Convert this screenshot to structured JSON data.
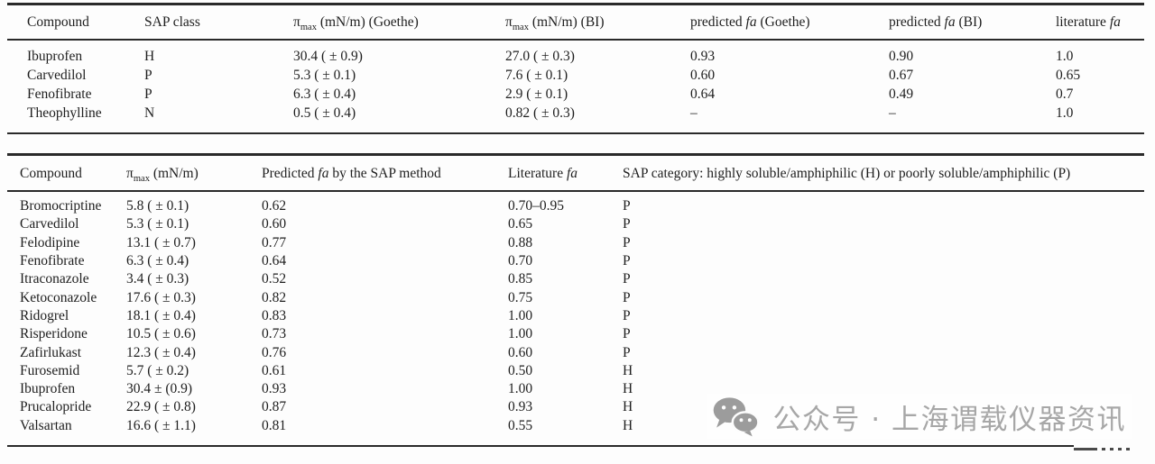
{
  "colors": {
    "text": "#1e1e1e",
    "rule": "#2a2a2a",
    "watermark": "#a7a7a7"
  },
  "table1": {
    "columns": [
      [
        {
          "t": "Compound"
        }
      ],
      [
        {
          "t": "SAP class"
        }
      ],
      [
        {
          "t": "π"
        },
        {
          "t": "max",
          "s": "sub"
        },
        {
          "t": " (mN/m) (Goethe)"
        }
      ],
      [
        {
          "t": "π"
        },
        {
          "t": "max",
          "s": "sub"
        },
        {
          "t": " (mN/m) (BI)"
        }
      ],
      [
        {
          "t": "predicted "
        },
        {
          "t": "fa",
          "s": "i"
        },
        {
          "t": " (Goethe)"
        }
      ],
      [
        {
          "t": "predicted "
        },
        {
          "t": "fa",
          "s": "i"
        },
        {
          "t": " (BI)"
        }
      ],
      [
        {
          "t": "literature "
        },
        {
          "t": "fa",
          "s": "i"
        }
      ]
    ],
    "rows": [
      [
        "Ibuprofen",
        "H",
        "30.4 ( ± 0.9)",
        "27.0 ( ± 0.3)",
        "0.93",
        "0.90",
        "1.0"
      ],
      [
        "Carvedilol",
        "P",
        "5.3 ( ± 0.1)",
        "7.6 ( ± 0.1)",
        "0.60",
        "0.67",
        "0.65"
      ],
      [
        "Fenofibrate",
        "P",
        "6.3 ( ± 0.4)",
        "2.9 ( ± 0.1)",
        "0.64",
        "0.49",
        "0.7"
      ],
      [
        "Theophylline",
        "N",
        "0.5 ( ± 0.4)",
        "0.82 ( ± 0.3)",
        "–",
        "–",
        "1.0"
      ]
    ]
  },
  "table2": {
    "columns": [
      [
        {
          "t": "Compound"
        }
      ],
      [
        {
          "t": "π"
        },
        {
          "t": "max",
          "s": "sub"
        },
        {
          "t": " (mN/m)"
        }
      ],
      [
        {
          "t": "Predicted "
        },
        {
          "t": "fa",
          "s": "i"
        },
        {
          "t": " by the SAP method"
        }
      ],
      [
        {
          "t": "Literature "
        },
        {
          "t": "fa",
          "s": "i"
        }
      ],
      [
        {
          "t": "SAP category: highly soluble/amphiphilic (H) or poorly soluble/amphiphilic (P)"
        }
      ]
    ],
    "rows": [
      [
        "Bromocriptine",
        "5.8 ( ± 0.1)",
        "0.62",
        "0.70–0.95",
        "P"
      ],
      [
        "Carvedilol",
        "5.3 ( ± 0.1)",
        "0.60",
        "0.65",
        "P"
      ],
      [
        "Felodipine",
        "13.1 ( ± 0.7)",
        "0.77",
        "0.88",
        "P"
      ],
      [
        "Fenofibrate",
        "6.3 ( ± 0.4)",
        "0.64",
        "0.70",
        "P"
      ],
      [
        "Itraconazole",
        "3.4 ( ± 0.3)",
        "0.52",
        "0.85",
        "P"
      ],
      [
        "Ketoconazole",
        "17.6 ( ± 0.3)",
        "0.82",
        "0.75",
        "P"
      ],
      [
        "Ridogrel",
        "18.1 ( ± 0.4)",
        "0.83",
        "1.00",
        "P"
      ],
      [
        "Risperidone",
        "10.5 ( ± 0.6)",
        "0.73",
        "1.00",
        "P"
      ],
      [
        "Zafirlukast",
        "12.3 ( ± 0.4)",
        "0.76",
        "0.60",
        "P"
      ],
      [
        "Furosemid",
        "5.7 ( ± 0.2)",
        "0.61",
        "0.50",
        "H"
      ],
      [
        "Ibuprofen",
        "30.4 ± (0.9)",
        "0.93",
        "1.00",
        "H"
      ],
      [
        "Prucalopride",
        "22.9 ( ± 0.8)",
        "0.87",
        "0.93",
        "H"
      ],
      [
        "Valsartan",
        "16.6 ( ± 1.1)",
        "0.81",
        "0.55",
        "H"
      ]
    ]
  },
  "watermark": {
    "icon": "wechat-icon",
    "text": "公众号 · 上海谓载仪器资讯"
  }
}
